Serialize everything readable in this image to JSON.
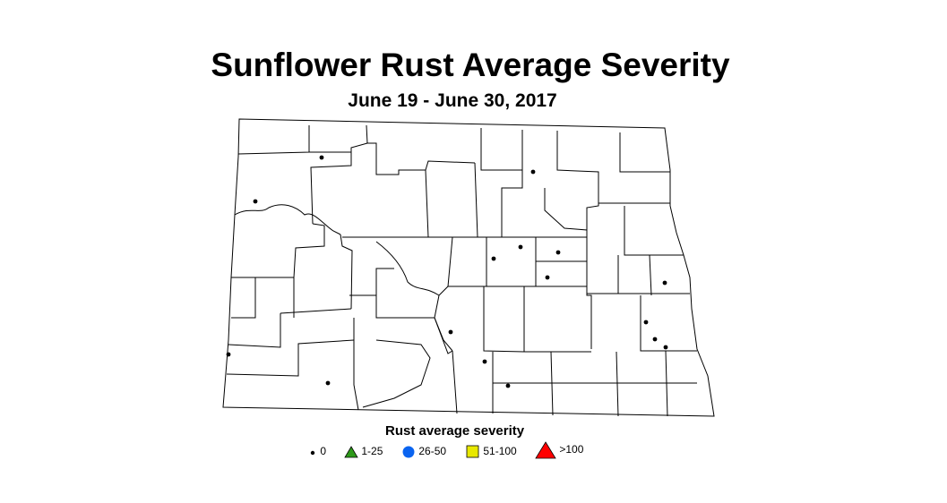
{
  "title": "Sunflower Rust Average Severity",
  "subtitle": "June 19 - June 30, 2017",
  "legend": {
    "title": "Rust average severity",
    "items": [
      {
        "label": "0",
        "symbol": "small-dot",
        "color": "#000000"
      },
      {
        "label": "1-25",
        "symbol": "triangle",
        "color": "#2e9a1a"
      },
      {
        "label": "26-50",
        "symbol": "circle",
        "color": "#0a64f0"
      },
      {
        "label": "51-100",
        "symbol": "square",
        "color": "#e8e800"
      },
      {
        "label": ">100",
        "symbol": "large-triangle",
        "color": "#ff0000"
      }
    ]
  },
  "observations": {
    "severity_category": "0",
    "count": 16
  }
}
